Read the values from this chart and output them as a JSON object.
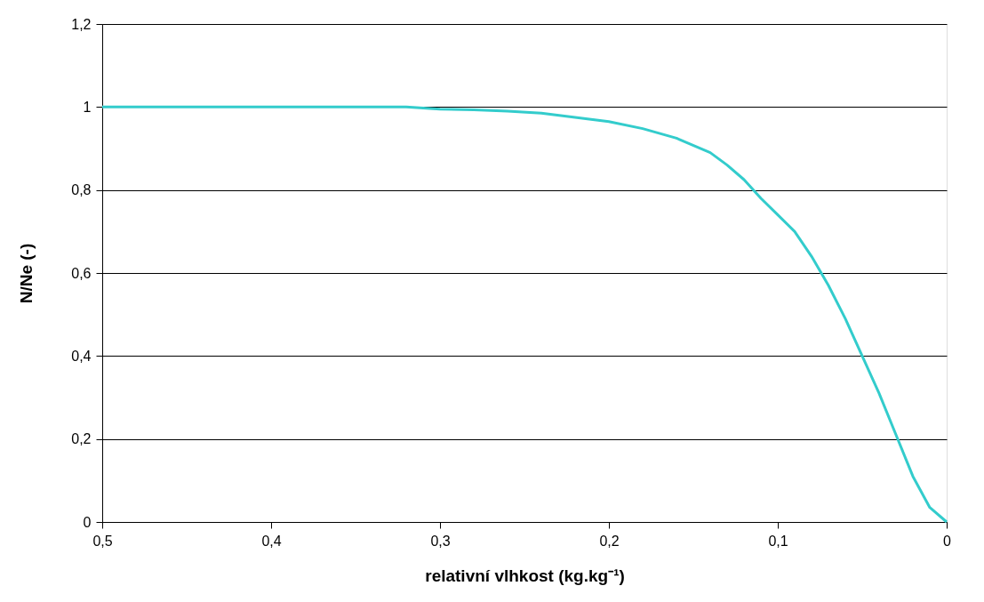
{
  "chart_data": {
    "type": "line",
    "xlabel": "relativní vlhkost (kg.kg⁻¹)",
    "ylabel": "N/Ne (-)",
    "x": [
      0.5,
      0.32,
      0.3,
      0.28,
      0.26,
      0.24,
      0.22,
      0.2,
      0.18,
      0.16,
      0.14,
      0.13,
      0.12,
      0.11,
      0.1,
      0.09,
      0.08,
      0.07,
      0.06,
      0.05,
      0.04,
      0.03,
      0.02,
      0.01,
      0
    ],
    "series": [
      {
        "color": "#33cccc",
        "values": [
          1,
          1,
          0.995,
          0.993,
          0.99,
          0.985,
          0.975,
          0.965,
          0.948,
          0.925,
          0.89,
          0.86,
          0.825,
          0.78,
          0.74,
          0.7,
          0.64,
          0.57,
          0.49,
          0.4,
          0.31,
          0.21,
          0.11,
          0.035,
          0
        ]
      }
    ],
    "xlim": [
      0.5,
      0
    ],
    "ylim": [
      0,
      1.2
    ],
    "xticks": [
      {
        "value": 0.5,
        "label": "0,5"
      },
      {
        "value": 0.4,
        "label": "0,4"
      },
      {
        "value": 0.3,
        "label": "0,3"
      },
      {
        "value": 0.2,
        "label": "0,2"
      },
      {
        "value": 0.1,
        "label": "0,1"
      },
      0
    ],
    "yticks": [
      0,
      {
        "value": 0.2,
        "label": "0,2"
      },
      {
        "value": 0.4,
        "label": "0,4"
      },
      {
        "value": 0.6,
        "label": "0,6"
      },
      {
        "value": 0.8,
        "label": "0,8"
      },
      1,
      {
        "value": 1.2,
        "label": "1,2"
      }
    ],
    "grid": "y",
    "marker": "none",
    "line_style": "solid"
  }
}
